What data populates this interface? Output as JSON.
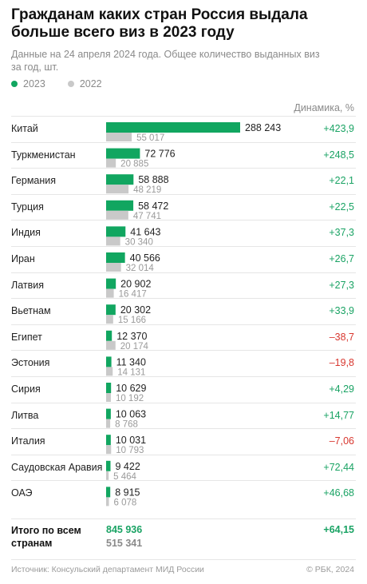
{
  "title": "Гражданам каких стран Россия выдала больше всего виз в 2023 году",
  "subtitle": "Данные на 24 апреля 2024 года. Общее количество выданных виз за год, шт.",
  "colors": {
    "s2023": "#11a660",
    "s2022": "#c9c9c9",
    "positive": "#1aa364",
    "negative": "#d8372f"
  },
  "dynamics_header": "Динамика, %",
  "chart_data": {
    "type": "bar",
    "orientation": "horizontal",
    "categories": [
      "Китай",
      "Туркменистан",
      "Германия",
      "Турция",
      "Индия",
      "Иран",
      "Латвия",
      "Вьетнам",
      "Египет",
      "Эстония",
      "Сирия",
      "Литва",
      "Италия",
      "Саудовская Аравия",
      "ОАЭ"
    ],
    "series": [
      {
        "name": "2023",
        "values": [
          288243,
          72776,
          58888,
          58472,
          41643,
          40566,
          20902,
          20302,
          12370,
          11340,
          10629,
          10063,
          10031,
          9422,
          8915
        ],
        "labels": [
          "288 243",
          "72 776",
          "58 888",
          "58 472",
          "41 643",
          "40 566",
          "20 902",
          "20 302",
          "12 370",
          "11 340",
          "10 629",
          "10 063",
          "10 031",
          "9 422",
          "8 915"
        ]
      },
      {
        "name": "2022",
        "values": [
          55017,
          20885,
          48219,
          47741,
          30340,
          32014,
          16417,
          15166,
          20174,
          14131,
          10192,
          8768,
          10793,
          5464,
          6078
        ],
        "labels": [
          "55 017",
          "20 885",
          "48 219",
          "47 741",
          "30 340",
          "32 014",
          "16 417",
          "15 166",
          "20 174",
          "14 131",
          "10 192",
          "8 768",
          "10 793",
          "5 464",
          "6 078"
        ]
      }
    ],
    "dynamics": [
      "+423,9",
      "+248,5",
      "+22,1",
      "+22,5",
      "+37,3",
      "+26,7",
      "+27,3",
      "+33,9",
      "–38,7",
      "–19,8",
      "+4,29",
      "+14,77",
      "–7,06",
      "+72,44",
      "+46,68"
    ],
    "xlim": [
      0,
      288243
    ]
  },
  "totals": {
    "label": "Итого по всем странам",
    "value_2023": "845 936",
    "value_2022": "515 341",
    "dynamics": "+64,15"
  },
  "source": "Источник: Консульский департамент МИД России",
  "copyright": "© РБК, 2024"
}
